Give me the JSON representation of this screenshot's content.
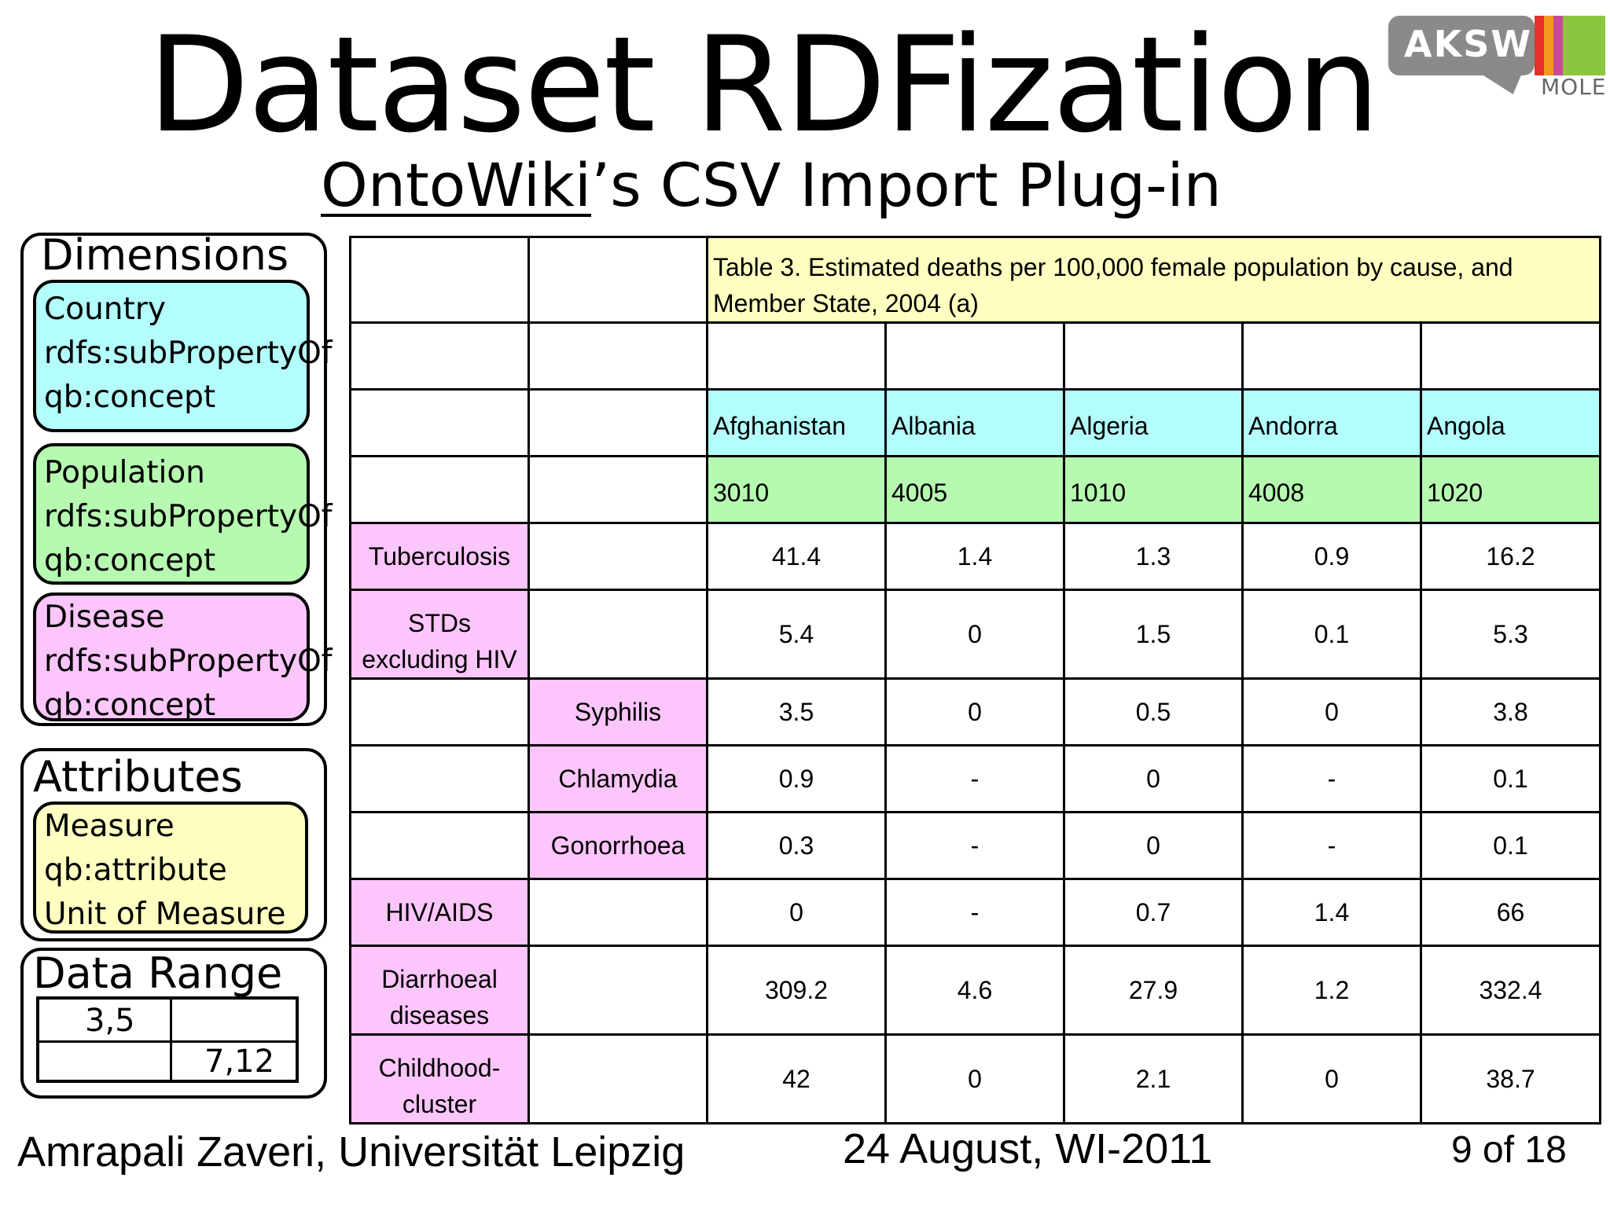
{
  "slide": {
    "title": "Dataset RDFization",
    "subtitle_link": "OntoWiki",
    "subtitle_rest": "’s CSV Import Plug-in"
  },
  "logo": {
    "text": "AKSW",
    "sub": "MOLE",
    "bar_colors": [
      "#e8302b",
      "#f39a1e",
      "#c94a9a",
      "#8cc63f"
    ],
    "box_color": "#8a8a8a"
  },
  "dimensions": {
    "heading": "Dimensions",
    "country": {
      "name": "Country",
      "prop": "rdfs:subPropertyOf",
      "concept": "qb:concept",
      "color": "#b3fdfd"
    },
    "population": {
      "name": "Population",
      "prop": "rdfs:subPropertyOf",
      "concept": "qb:concept",
      "color": "#b6f9b0"
    },
    "disease": {
      "name": "Disease",
      "prop": "rdfs:subPropertyOf",
      "concept": "qb:concept",
      "color": "#fcc5fb"
    }
  },
  "attributes": {
    "heading": "Attributes",
    "measure": {
      "name": "Measure",
      "prop": "qb:attribute",
      "unit": "Unit of Measure",
      "color": "#ffffc1"
    }
  },
  "data_range": {
    "heading": "Data Range",
    "start": "3,5",
    "end": "7,12"
  },
  "table": {
    "caption": "Table 3. Estimated deaths per 100,000 female population by cause, and Member State,  2004 (a)",
    "countries": [
      "Afghanistan",
      "Albania",
      "Algeria",
      "Andorra",
      "Angola"
    ],
    "populations": [
      "3010",
      "4005",
      "1010",
      "4008",
      "1020"
    ],
    "rows": [
      {
        "cause": "Tuberculosis",
        "sub": "",
        "values": [
          "41.4",
          "1.4",
          "1.3",
          "0.9",
          "16.2"
        ]
      },
      {
        "cause": "STDs excluding HIV",
        "sub": "",
        "values": [
          "5.4",
          "0",
          "1.5",
          "0.1",
          "5.3"
        ]
      },
      {
        "cause": "",
        "sub": "Syphilis",
        "values": [
          "3.5",
          "0",
          "0.5",
          "0",
          "3.8"
        ]
      },
      {
        "cause": "",
        "sub": "Chlamydia",
        "values": [
          "0.9",
          "-",
          "0",
          "-",
          "0.1"
        ]
      },
      {
        "cause": "",
        "sub": "Gonorrhoea",
        "values": [
          "0.3",
          "-",
          "0",
          "-",
          "0.1"
        ]
      },
      {
        "cause": "HIV/AIDS",
        "sub": "",
        "values": [
          "0",
          "-",
          "0.7",
          "1.4",
          "66"
        ]
      },
      {
        "cause": "Diarrhoeal diseases",
        "sub": "",
        "values": [
          "309.2",
          "4.6",
          "27.9",
          "1.2",
          "332.4"
        ]
      },
      {
        "cause": "Childhood-cluster",
        "sub": "",
        "values": [
          "42",
          "0",
          "2.1",
          "0",
          "38.7"
        ]
      }
    ]
  },
  "footer": {
    "author": "Amrapali Zaveri, Universität Leipzig",
    "date": "24 August, WI-2011",
    "page": "9 of 18"
  }
}
